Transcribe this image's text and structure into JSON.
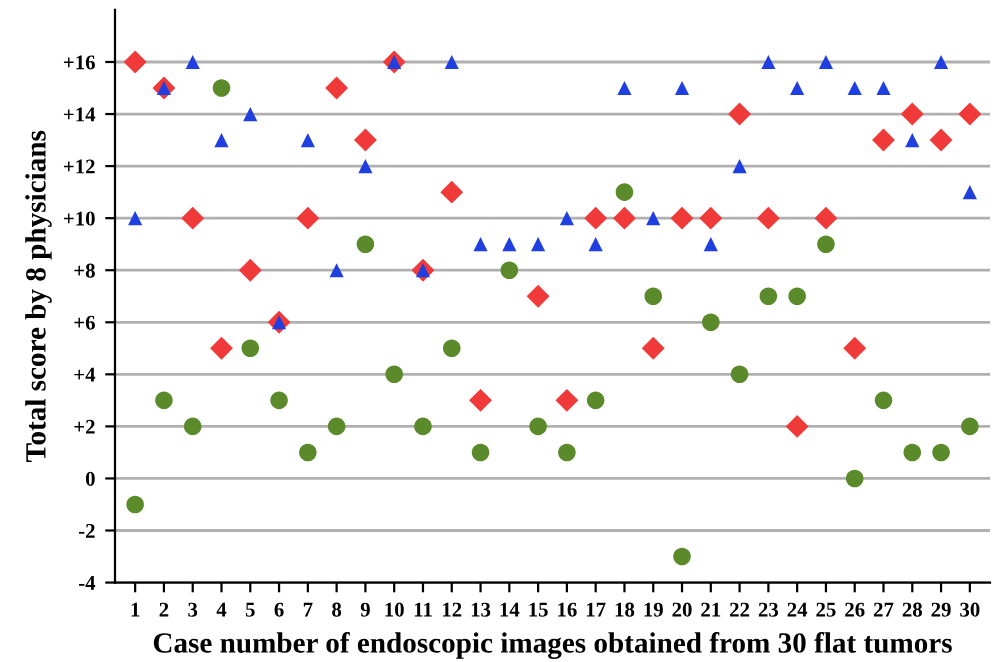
{
  "chart_data": {
    "type": "scatter",
    "xlabel": "Case number of endoscopic images obtained from 30 flat tumors",
    "ylabel": "Total score by 8 physicians",
    "categories": [
      "1",
      "2",
      "3",
      "4",
      "5",
      "6",
      "7",
      "8",
      "9",
      "10",
      "11",
      "12",
      "13",
      "14",
      "15",
      "16",
      "17",
      "18",
      "19",
      "20",
      "21",
      "22",
      "23",
      "24",
      "25",
      "26",
      "27",
      "28",
      "29",
      "30"
    ],
    "series": [
      {
        "color": "#5b8a2b",
        "marker": "circle",
        "values": [
          -1,
          3,
          2,
          15,
          5,
          3,
          1,
          2,
          9,
          4,
          2,
          5,
          1,
          8,
          2,
          1,
          3,
          11,
          7,
          -3,
          6,
          4,
          7,
          7,
          9,
          0,
          3,
          1,
          1,
          2
        ]
      },
      {
        "color": "#f03a3a",
        "marker": "diamond",
        "values": [
          16,
          15,
          10,
          5,
          8,
          6,
          10,
          15,
          13,
          16,
          8,
          11,
          3,
          null,
          7,
          3,
          10,
          10,
          5,
          10,
          10,
          14,
          10,
          2,
          10,
          5,
          13,
          14,
          13,
          14
        ]
      },
      {
        "color": "#1f3fe0",
        "marker": "triangle",
        "values": [
          10,
          15,
          16,
          13,
          14,
          6,
          13,
          8,
          12,
          16,
          8,
          16,
          9,
          9,
          9,
          10,
          9,
          15,
          10,
          15,
          9,
          12,
          16,
          15,
          16,
          15,
          15,
          13,
          16,
          11
        ]
      }
    ],
    "ylim": [
      -4,
      18
    ],
    "yticks": [
      -4,
      -2,
      0,
      {
        "value": 2,
        "label": "+2"
      },
      {
        "value": 4,
        "label": "+4"
      },
      {
        "value": 6,
        "label": "+6"
      },
      {
        "value": 8,
        "label": "+8"
      },
      {
        "value": 10,
        "label": "+10"
      },
      {
        "value": 12,
        "label": "+12"
      },
      {
        "value": 14,
        "label": "+14"
      },
      {
        "value": 16,
        "label": "+16"
      }
    ],
    "grid": "y"
  }
}
